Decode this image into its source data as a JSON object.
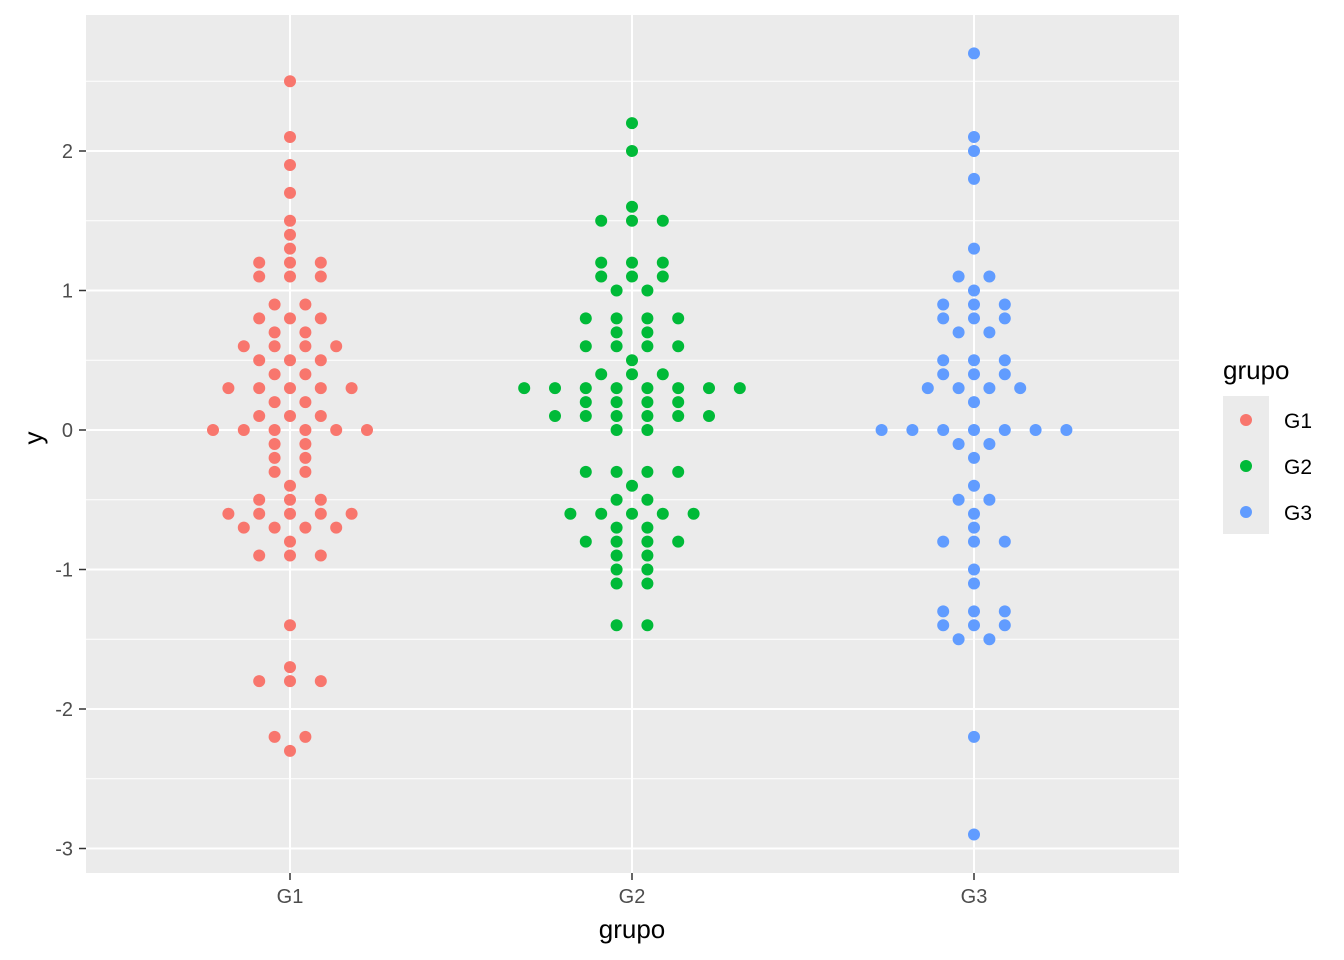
{
  "chart_data": {
    "type": "scatter",
    "subtype": "dotplot",
    "title": "",
    "xlabel": "grupo",
    "ylabel": "y",
    "categories": [
      "G1",
      "G2",
      "G3"
    ],
    "ylim": [
      -3.15,
      3.0
    ],
    "yticks": [
      -3,
      -2,
      -1,
      0,
      1,
      2
    ],
    "ytick_labels": [
      "-3",
      "-2",
      "-1",
      "0",
      "1",
      "2"
    ],
    "grid": true,
    "legend": {
      "title": "grupo",
      "position": "right",
      "entries": [
        "G1",
        "G2",
        "G3"
      ]
    },
    "colors": {
      "G1": "#F8766D",
      "G2": "#00BA38",
      "G3": "#619CFF",
      "panel_background": "#EBEBEB",
      "grid": "#FFFFFF"
    },
    "series": [
      {
        "name": "G1",
        "values": [
          2.5,
          2.1,
          1.9,
          1.7,
          1.5,
          1.4,
          1.3,
          1.2,
          1.2,
          1.2,
          1.1,
          1.1,
          1.1,
          0.9,
          0.9,
          0.8,
          0.8,
          0.8,
          0.7,
          0.7,
          0.6,
          0.6,
          0.6,
          0.6,
          0.5,
          0.5,
          0.5,
          0.4,
          0.4,
          0.3,
          0.3,
          0.3,
          0.3,
          0.3,
          0.2,
          0.2,
          0.1,
          0.1,
          0.1,
          0,
          0,
          0,
          0,
          0,
          0,
          -0.1,
          -0.1,
          -0.2,
          -0.2,
          -0.3,
          -0.3,
          -0.4,
          -0.5,
          -0.5,
          -0.5,
          -0.6,
          -0.6,
          -0.6,
          -0.6,
          -0.6,
          -0.7,
          -0.7,
          -0.7,
          -0.7,
          -0.8,
          -0.9,
          -0.9,
          -0.9,
          -1.4,
          -1.7,
          -1.8,
          -1.8,
          -1.8,
          -2.2,
          -2.2,
          -2.3
        ]
      },
      {
        "name": "G2",
        "values": [
          2.2,
          2.0,
          1.6,
          1.5,
          1.5,
          1.5,
          1.2,
          1.2,
          1.2,
          1.1,
          1.1,
          1.1,
          1.0,
          1.0,
          0.8,
          0.8,
          0.8,
          0.8,
          0.7,
          0.7,
          0.6,
          0.6,
          0.6,
          0.6,
          0.5,
          0.4,
          0.4,
          0.4,
          0.3,
          0.3,
          0.3,
          0.3,
          0.3,
          0.3,
          0.3,
          0.3,
          0.2,
          0.2,
          0.2,
          0.2,
          0.1,
          0.1,
          0.1,
          0.1,
          0.1,
          0.1,
          0,
          0,
          -0.3,
          -0.3,
          -0.3,
          -0.3,
          -0.4,
          -0.5,
          -0.5,
          -0.6,
          -0.6,
          -0.6,
          -0.6,
          -0.6,
          -0.7,
          -0.7,
          -0.8,
          -0.8,
          -0.8,
          -0.8,
          -0.9,
          -0.9,
          -1.0,
          -1.0,
          -1.1,
          -1.1,
          -1.4,
          -1.4
        ]
      },
      {
        "name": "G3",
        "values": [
          2.7,
          2.1,
          2.0,
          1.8,
          1.3,
          1.1,
          1.1,
          1.0,
          0.9,
          0.9,
          0.9,
          0.8,
          0.8,
          0.8,
          0.7,
          0.7,
          0.5,
          0.5,
          0.5,
          0.4,
          0.4,
          0.4,
          0.3,
          0.3,
          0.3,
          0.3,
          0.2,
          0,
          0,
          0,
          0,
          0,
          0,
          0,
          -0.1,
          -0.1,
          -0.2,
          -0.4,
          -0.5,
          -0.5,
          -0.6,
          -0.7,
          -0.8,
          -0.8,
          -0.8,
          -1.0,
          -1.1,
          -1.3,
          -1.3,
          -1.3,
          -1.4,
          -1.4,
          -1.4,
          -1.5,
          -1.5,
          -2.2,
          -2.9
        ]
      }
    ]
  }
}
